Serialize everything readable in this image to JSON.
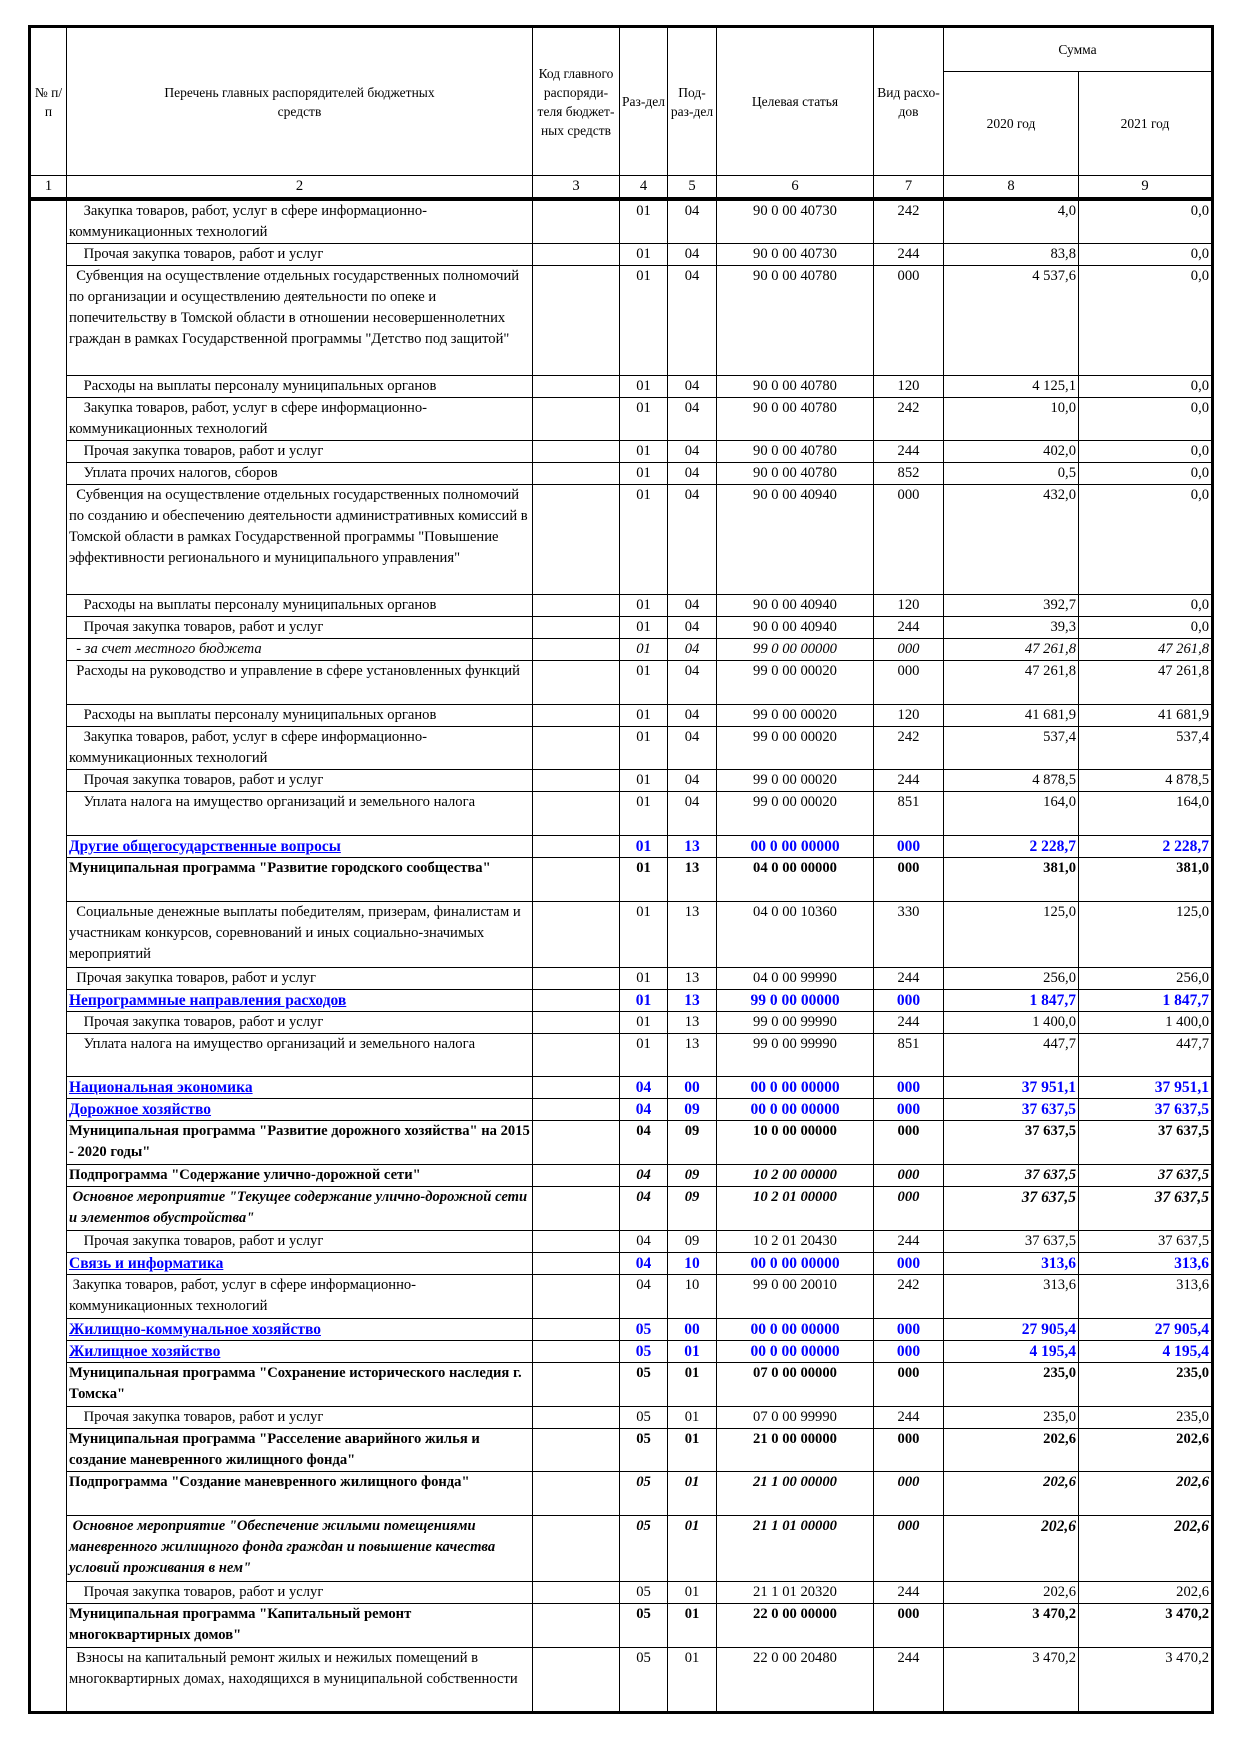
{
  "header": {
    "col1": "№ п/п",
    "col2": "Перечень главных распорядителей бюджетных средств",
    "col3": "Код главного распоряди-теля бюджет-ных средств",
    "col4": "Раз-дел",
    "col5": "Под-раз-дел",
    "col6": "Целевая статья",
    "col7": "Вид расхо-дов",
    "sum": "Сумма",
    "col8": "2020 год",
    "col9": "2021 год",
    "numbers": [
      "1",
      "2",
      "3",
      "4",
      "5",
      "6",
      "7",
      "8",
      "9"
    ]
  },
  "rows": [
    {
      "style": "normal",
      "lines": 2,
      "desc": "    Закупка товаров, работ, услуг в сфере информационно-коммуникационных технологий",
      "razdel": "01",
      "podrazdel": "04",
      "target": "90 0 00 40730",
      "vid": "242",
      "y2020": "4,0",
      "y2021": "0,0"
    },
    {
      "style": "normal",
      "lines": 1,
      "desc": "    Прочая закупка товаров, работ и услуг",
      "razdel": "01",
      "podrazdel": "04",
      "target": "90 0 00 40730",
      "vid": "244",
      "y2020": "83,8",
      "y2021": "0,0"
    },
    {
      "style": "normal",
      "lines": 5,
      "desc": "  Субвенция на осуществление отдельных государственных полномочий по организации и осуществлению деятельности по опеке и попечительству в Томской области в отношении несовершеннолетних граждан в рамках Государственной программы \"Детство под защитой\"",
      "razdel": "01",
      "podrazdel": "04",
      "target": "90 0 00 40780",
      "vid": "000",
      "y2020": "4 537,6",
      "y2021": "0,0"
    },
    {
      "style": "normal",
      "lines": 1,
      "desc": "    Расходы на выплаты персоналу муниципальных органов",
      "razdel": "01",
      "podrazdel": "04",
      "target": "90 0 00 40780",
      "vid": "120",
      "y2020": "4 125,1",
      "y2021": "0,0"
    },
    {
      "style": "normal",
      "lines": 2,
      "desc": "    Закупка товаров, работ, услуг в сфере информационно-коммуникационных технологий",
      "razdel": "01",
      "podrazdel": "04",
      "target": "90 0 00 40780",
      "vid": "242",
      "y2020": "10,0",
      "y2021": "0,0"
    },
    {
      "style": "normal",
      "lines": 1,
      "desc": "    Прочая закупка товаров, работ и услуг",
      "razdel": "01",
      "podrazdel": "04",
      "target": "90 0 00 40780",
      "vid": "244",
      "y2020": "402,0",
      "y2021": "0,0"
    },
    {
      "style": "normal",
      "lines": 1,
      "desc": "    Уплата прочих налогов, сборов",
      "razdel": "01",
      "podrazdel": "04",
      "target": "90 0 00 40780",
      "vid": "852",
      "y2020": "0,5",
      "y2021": "0,0"
    },
    {
      "style": "normal",
      "lines": 5,
      "desc": "  Субвенция на осуществление отдельных государственных полномочий по созданию и обеспечению деятельности административных комиссий в Томской области в рамках Государственной программы \"Повышение эффективности регионального и муниципального управления\"",
      "razdel": "01",
      "podrazdel": "04",
      "target": "90 0 00 40940",
      "vid": "000",
      "y2020": "432,0",
      "y2021": "0,0"
    },
    {
      "style": "normal",
      "lines": 1,
      "desc": "    Расходы на выплаты персоналу муниципальных органов",
      "razdel": "01",
      "podrazdel": "04",
      "target": "90 0 00 40940",
      "vid": "120",
      "y2020": "392,7",
      "y2021": "0,0"
    },
    {
      "style": "normal",
      "lines": 1,
      "desc": "    Прочая закупка товаров, работ и услуг",
      "razdel": "01",
      "podrazdel": "04",
      "target": "90 0 00 40940",
      "vid": "244",
      "y2020": "39,3",
      "y2021": "0,0"
    },
    {
      "style": "italic",
      "lines": 1,
      "desc": "  - за счет местного бюджета",
      "razdel": "01",
      "podrazdel": "04",
      "target": "99 0 00 00000",
      "vid": "000",
      "y2020": "47 261,8",
      "y2021": "47 261,8"
    },
    {
      "style": "normal",
      "lines": 2,
      "desc": "  Расходы на руководство и управление в сфере установленных функций",
      "razdel": "01",
      "podrazdel": "04",
      "target": "99 0 00 00020",
      "vid": "000",
      "y2020": "47 261,8",
      "y2021": "47 261,8"
    },
    {
      "style": "normal",
      "lines": 1,
      "desc": "    Расходы на выплаты персоналу муниципальных органов",
      "razdel": "01",
      "podrazdel": "04",
      "target": "99 0 00 00020",
      "vid": "120",
      "y2020": "41 681,9",
      "y2021": "41 681,9"
    },
    {
      "style": "normal",
      "lines": 2,
      "desc": "    Закупка товаров, работ, услуг в сфере информационно-коммуникационных технологий",
      "razdel": "01",
      "podrazdel": "04",
      "target": "99 0 00 00020",
      "vid": "242",
      "y2020": "537,4",
      "y2021": "537,4"
    },
    {
      "style": "normal",
      "lines": 1,
      "desc": "    Прочая закупка товаров, работ и услуг",
      "razdel": "01",
      "podrazdel": "04",
      "target": "99 0 00 00020",
      "vid": "244",
      "y2020": "4 878,5",
      "y2021": "4 878,5"
    },
    {
      "style": "normal",
      "lines": 2,
      "desc": "    Уплата налога на имущество организаций и земельного налога",
      "razdel": "01",
      "podrazdel": "04",
      "target": "99 0 00 00020",
      "vid": "851",
      "y2020": "164,0",
      "y2021": "164,0"
    },
    {
      "style": "blue",
      "lines": 1,
      "desc": "Другие общегосударственные вопросы",
      "razdel": "01",
      "podrazdel": "13",
      "target": "00 0 00 00000",
      "vid": "000",
      "y2020": "2 228,7",
      "y2021": "2 228,7"
    },
    {
      "style": "bold",
      "lines": 2,
      "desc": "Муниципальная программа \"Развитие городского сообщества\"",
      "razdel": "01",
      "podrazdel": "13",
      "target": "04 0 00 00000",
      "vid": "000",
      "y2020": "381,0",
      "y2021": "381,0"
    },
    {
      "style": "normal",
      "lines": 3,
      "desc": "  Социальные денежные выплаты победителям, призерам, финалистам и участникам конкурсов, соревнований и иных социально-значимых мероприятий",
      "razdel": "01",
      "podrazdel": "13",
      "target": "04 0 00 10360",
      "vid": "330",
      "y2020": "125,0",
      "y2021": "125,0"
    },
    {
      "style": "normal",
      "lines": 1,
      "desc": "  Прочая закупка товаров, работ и услуг",
      "razdel": "01",
      "podrazdel": "13",
      "target": "04 0 00 99990",
      "vid": "244",
      "y2020": "256,0",
      "y2021": "256,0"
    },
    {
      "style": "blue",
      "lines": 1,
      "desc": "Непрограммные направления расходов",
      "razdel": "01",
      "podrazdel": "13",
      "target": "99 0 00 00000",
      "vid": "000",
      "y2020": "1 847,7",
      "y2021": "1 847,7"
    },
    {
      "style": "normal",
      "lines": 1,
      "desc": "    Прочая закупка товаров, работ и услуг",
      "razdel": "01",
      "podrazdel": "13",
      "target": "99 0 00 99990",
      "vid": "244",
      "y2020": "1 400,0",
      "y2021": "1 400,0"
    },
    {
      "style": "normal",
      "lines": 2,
      "desc": "    Уплата налога на имущество организаций и земельного налога",
      "razdel": "01",
      "podrazdel": "13",
      "target": "99 0 00 99990",
      "vid": "851",
      "y2020": "447,7",
      "y2021": "447,7"
    },
    {
      "style": "blue",
      "lines": 1,
      "desc": "Национальная экономика",
      "razdel": "04",
      "podrazdel": "00",
      "target": "00 0 00 00000",
      "vid": "000",
      "y2020": "37 951,1",
      "y2021": "37 951,1"
    },
    {
      "style": "blue",
      "lines": 1,
      "desc": "Дорожное хозяйство",
      "razdel": "04",
      "podrazdel": "09",
      "target": "00 0 00 00000",
      "vid": "000",
      "y2020": "37 637,5",
      "y2021": "37 637,5"
    },
    {
      "style": "bold",
      "lines": 2,
      "desc": "Муниципальная программа \"Развитие дорожного хозяйства\" на 2015 - 2020 годы\"",
      "razdel": "04",
      "podrazdel": "09",
      "target": "10 0 00 00000",
      "vid": "000",
      "y2020": "37 637,5",
      "y2021": "37 637,5"
    },
    {
      "style": "sub",
      "lines": 1,
      "desc": "Подпрограмма \"Содержание улично-дорожной сети\"",
      "razdel": "04",
      "podrazdel": "09",
      "target": "10 2 00 00000",
      "vid": "000",
      "y2020": "37 637,5",
      "y2021": "37 637,5"
    },
    {
      "style": "event",
      "lines": 2,
      "desc": " Основное мероприятие \"Текущее содержание улично-дорожной сети и элементов обустройства\"",
      "razdel": "04",
      "podrazdel": "09",
      "target": "10 2 01 00000",
      "vid": "000",
      "y2020": "37 637,5",
      "y2021": "37 637,5"
    },
    {
      "style": "normal",
      "lines": 1,
      "desc": "    Прочая закупка товаров, работ и услуг",
      "razdel": "04",
      "podrazdel": "09",
      "target": "10 2 01 20430",
      "vid": "244",
      "y2020": "37 637,5",
      "y2021": "37 637,5"
    },
    {
      "style": "blue",
      "lines": 1,
      "desc": "Связь и информатика",
      "razdel": "04",
      "podrazdel": "10",
      "target": "00 0 00 00000",
      "vid": "000",
      "y2020": "313,6",
      "y2021": "313,6"
    },
    {
      "style": "normal",
      "lines": 2,
      "desc": " Закупка товаров, работ, услуг в сфере информационно-коммуникационных технологий",
      "razdel": "04",
      "podrazdel": "10",
      "target": "99 0 00 20010",
      "vid": "242",
      "y2020": "313,6",
      "y2021": "313,6"
    },
    {
      "style": "blue",
      "lines": 1,
      "desc": "Жилищно-коммунальное хозяйство",
      "razdel": "05",
      "podrazdel": "00",
      "target": "00 0 00 00000",
      "vid": "000",
      "y2020": "27 905,4",
      "y2021": "27 905,4"
    },
    {
      "style": "blue",
      "lines": 1,
      "desc": "Жилищное хозяйство",
      "razdel": "05",
      "podrazdel": "01",
      "target": "00 0 00 00000",
      "vid": "000",
      "y2020": "4 195,4",
      "y2021": "4 195,4"
    },
    {
      "style": "bold",
      "lines": 2,
      "desc": "Муниципальная программа \"Сохранение исторического наследия г. Томска\"",
      "razdel": "05",
      "podrazdel": "01",
      "target": "07 0 00 00000",
      "vid": "000",
      "y2020": "235,0",
      "y2021": "235,0"
    },
    {
      "style": "normal",
      "lines": 1,
      "desc": "    Прочая закупка товаров, работ и услуг",
      "razdel": "05",
      "podrazdel": "01",
      "target": "07 0 00 99990",
      "vid": "244",
      "y2020": "235,0",
      "y2021": "235,0"
    },
    {
      "style": "bold",
      "lines": 2,
      "desc": "Муниципальная программа \"Расселение аварийного жилья и создание маневренного жилищного фонда\"",
      "razdel": "05",
      "podrazdel": "01",
      "target": "21 0 00 00000",
      "vid": "000",
      "y2020": "202,6",
      "y2021": "202,6"
    },
    {
      "style": "sub",
      "lines": 2,
      "desc": "Подпрограмма \"Создание маневренного жилищного фонда\"",
      "razdel": "05",
      "podrazdel": "01",
      "target": "21 1 00 00000",
      "vid": "000",
      "y2020": "202,6",
      "y2021": "202,6"
    },
    {
      "style": "event",
      "lines": 3,
      "desc": " Основное мероприятие \"Обеспечение жилыми помещениями маневренного жилищного фонда граждан и повышение качества условий проживания в нем\"",
      "razdel": "05",
      "podrazdel": "01",
      "target": "21 1 01 00000",
      "vid": "000",
      "y2020": "202,6",
      "y2021": "202,6"
    },
    {
      "style": "normal",
      "lines": 1,
      "desc": "    Прочая закупка товаров, работ и услуг",
      "razdel": "05",
      "podrazdel": "01",
      "target": "21 1 01 20320",
      "vid": "244",
      "y2020": "202,6",
      "y2021": "202,6"
    },
    {
      "style": "bold",
      "lines": 2,
      "desc": "Муниципальная программа \"Капитальный ремонт многоквартирных домов\"",
      "razdel": "05",
      "podrazdel": "01",
      "target": "22 0 00 00000",
      "vid": "000",
      "y2020": "3 470,2",
      "y2021": "3 470,2"
    },
    {
      "style": "normal",
      "lines": 3,
      "desc": "  Взносы на капитальный ремонт жилых и нежилых помещений в многоквартирных домах, находящихся в муниципальной собственности",
      "razdel": "05",
      "podrazdel": "01",
      "target": "22 0 00 20480",
      "vid": "244",
      "y2020": "3 470,2",
      "y2021": "3 470,2"
    }
  ]
}
